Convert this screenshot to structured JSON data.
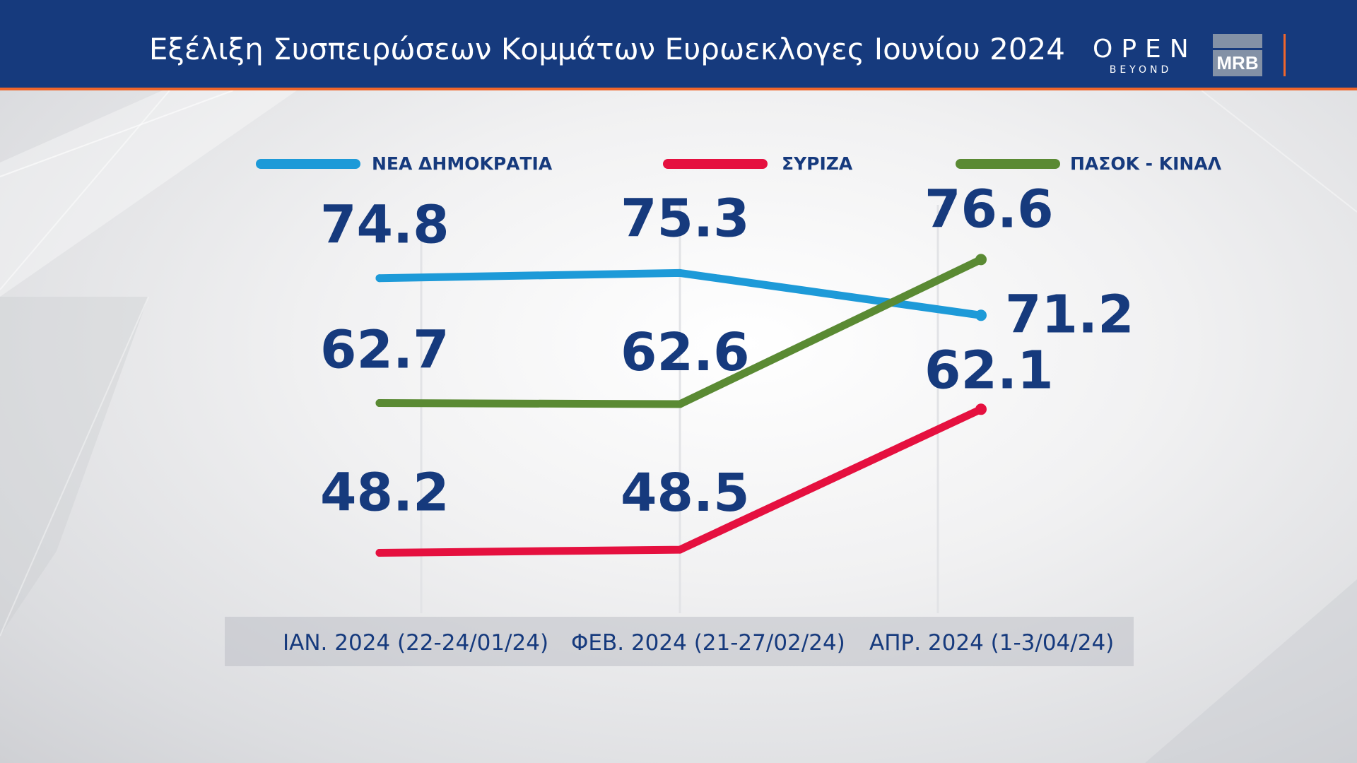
{
  "header": {
    "title": "Εξέλιξη Συσπειρώσεων Κομμάτων Ευρωεκλογες Ιουνίου 2024",
    "logo_primary": "OPEN",
    "logo_primary_sub": "BEYOND",
    "logo_secondary": "MRB",
    "colors": {
      "bar": "#163a7d",
      "accent": "#f0662b"
    }
  },
  "chart_data": {
    "type": "line",
    "title": "Εξέλιξη Συσπειρώσεων Κομμάτων Ευρωεκλογες Ιουνίου 2024",
    "categories": [
      "ΙΑΝ. 2024 (22-24/01/24)",
      "ΦΕΒ. 2024 (21-27/02/24)",
      "ΑΠΡ. 2024 (1-3/04/24)"
    ],
    "series": [
      {
        "name": "ΝΕΑ ΔΗΜΟΚΡΑΤΙΑ",
        "color": "#1d9ad8",
        "values": [
          74.8,
          75.3,
          71.2
        ],
        "value_labels": [
          "74.8",
          "75.3",
          "71.2"
        ]
      },
      {
        "name": "ΣΥΡΙΖΑ",
        "color": "#e5103f",
        "values": [
          48.2,
          48.5,
          62.1
        ],
        "value_labels": [
          "48.2",
          "48.5",
          "62.1"
        ]
      },
      {
        "name": "ΠΑΣΟΚ - ΚΙΝΑΛ",
        "color": "#5a8a33",
        "values": [
          62.7,
          62.6,
          76.6
        ],
        "value_labels": [
          "62.7",
          "62.6",
          "76.6"
        ]
      }
    ],
    "legend_position": "top",
    "grid": "vertical",
    "xlabel": "",
    "ylabel": ""
  }
}
